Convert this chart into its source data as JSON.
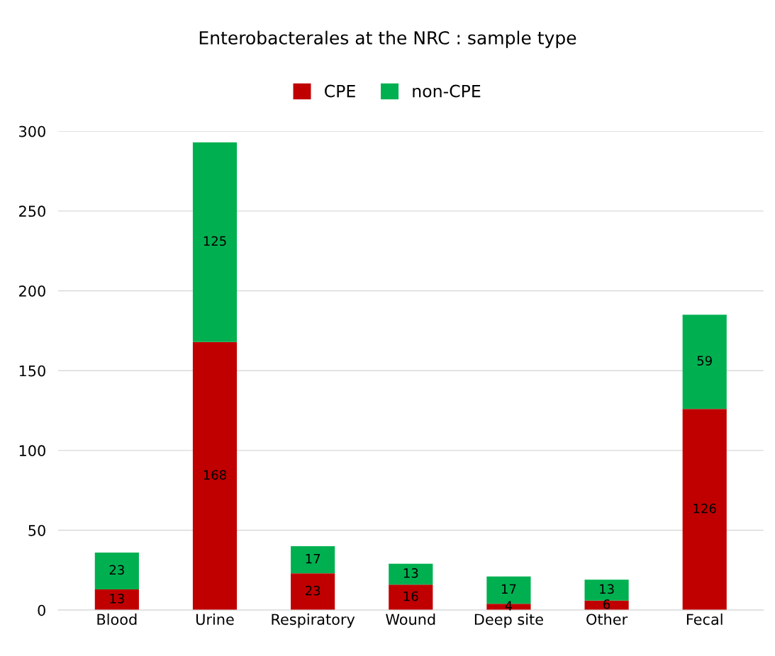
{
  "chart_data": {
    "type": "bar",
    "title": "Enterobacterales at the NRC : sample type",
    "categories": [
      "Blood",
      "Urine",
      "Respiratory",
      "Wound",
      "Deep site",
      "Other",
      "Fecal"
    ],
    "series": [
      {
        "name": "CPE",
        "color": "#c00000",
        "values": [
          13,
          168,
          23,
          16,
          4,
          6,
          126
        ]
      },
      {
        "name": "non-CPE",
        "color": "#00b050",
        "values": [
          23,
          125,
          17,
          13,
          17,
          13,
          59
        ]
      }
    ],
    "stacked": true,
    "data_labels": true,
    "ylim": [
      0,
      300
    ],
    "yticks": [
      0,
      50,
      100,
      150,
      200,
      250,
      300
    ],
    "grid": "y",
    "legend": "top"
  }
}
